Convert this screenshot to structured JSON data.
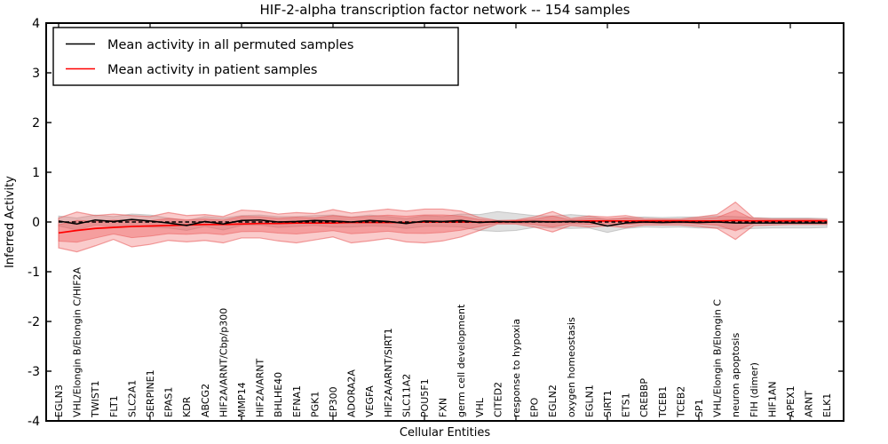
{
  "chart_data": {
    "type": "line",
    "title": "HIF-2-alpha transcription factor network -- 154 samples",
    "xlabel": "Cellular Entities",
    "ylabel": "Inferred Activity",
    "ylim": [
      -4,
      4
    ],
    "yticks": [
      4,
      3,
      2,
      1,
      0,
      -1,
      -2,
      -3,
      -4
    ],
    "grid": false,
    "legend_position": "upper left",
    "categories": [
      "EGLN3",
      "VHL/Elongin B/Elongin C/HIF2A",
      "TWIST1",
      "FLT1",
      "SLC2A1",
      "SERPINE1",
      "EPAS1",
      "KDR",
      "ABCG2",
      "HIF2A/ARNT/Cbp/p300",
      "MMP14",
      "HIF2A/ARNT",
      "BHLHE40",
      "EFNA1",
      "PGK1",
      "EP300",
      "ADORA2A",
      "VEGFA",
      "HIF2A/ARNT/SIRT1",
      "SLC11A2",
      "POU5F1",
      "FXN",
      "germ cell development",
      "VHL",
      "CITED2",
      "response to hypoxia",
      "EPO",
      "EGLN2",
      "oxygen homeostasis",
      "EGLN1",
      "SIRT1",
      "ETS1",
      "CREBBP",
      "TCEB1",
      "TCEB2",
      "SP1",
      "VHL/Elongin B/Elongin C",
      "neuron apoptosis",
      "FIH (dimer)",
      "HIF1AN",
      "APEX1",
      "ARNT",
      "ELK1"
    ],
    "series": [
      {
        "name": "Mean activity in all permuted samples",
        "color": "#000000",
        "style": "solid",
        "values": [
          0.02,
          -0.04,
          0.04,
          0.01,
          0.05,
          0.02,
          -0.02,
          -0.07,
          0.01,
          -0.04,
          0.03,
          0.04,
          0.0,
          0.01,
          0.03,
          0.02,
          0.0,
          0.03,
          0.01,
          -0.03,
          0.02,
          0.01,
          0.03,
          -0.01,
          0.01,
          0.0,
          0.01,
          0.0,
          0.01,
          0.0,
          -0.08,
          -0.02,
          0.0,
          -0.01,
          0.0,
          -0.01,
          0.0,
          -0.02,
          -0.02,
          -0.02,
          -0.02,
          -0.02,
          -0.02
        ]
      },
      {
        "name": "Mean activity in patient samples",
        "color": "#ff0000",
        "style": "solid",
        "values": [
          -0.22,
          -0.17,
          -0.13,
          -0.11,
          -0.09,
          -0.08,
          -0.07,
          -0.06,
          -0.05,
          -0.05,
          -0.04,
          -0.03,
          -0.03,
          -0.02,
          -0.02,
          -0.02,
          -0.01,
          -0.01,
          -0.01,
          -0.01,
          0.0,
          0.0,
          0.0,
          0.0,
          0.0,
          0.01,
          0.01,
          0.01,
          0.01,
          0.02,
          0.02,
          0.02,
          0.02,
          0.02,
          0.02,
          0.02,
          0.02,
          0.03,
          0.02,
          0.02,
          0.02,
          0.02,
          0.02
        ]
      }
    ],
    "zero_line": {
      "value": 0,
      "color": "#000000",
      "style": "dashed"
    },
    "bands": {
      "permuted_std": {
        "center_series": 0,
        "half_widths": [
          0.1,
          0.12,
          0.1,
          0.1,
          0.11,
          0.12,
          0.1,
          0.1,
          0.1,
          0.12,
          0.1,
          0.1,
          0.11,
          0.1,
          0.1,
          0.12,
          0.1,
          0.11,
          0.1,
          0.1,
          0.11,
          0.1,
          0.13,
          0.16,
          0.2,
          0.17,
          0.12,
          0.12,
          0.14,
          0.12,
          0.13,
          0.11,
          0.1,
          0.1,
          0.1,
          0.11,
          0.12,
          0.13,
          0.11,
          0.1,
          0.1,
          0.1,
          0.09
        ],
        "fill": "rgba(150,150,150,0.30)",
        "edge": "rgba(150,150,150,0.45)"
      },
      "patient_std_outer": {
        "hi": [
          0.08,
          0.2,
          0.13,
          0.16,
          0.13,
          0.11,
          0.19,
          0.13,
          0.15,
          0.11,
          0.24,
          0.22,
          0.16,
          0.19,
          0.17,
          0.25,
          0.18,
          0.22,
          0.26,
          0.22,
          0.26,
          0.26,
          0.22,
          0.09,
          0.03,
          0.04,
          0.1,
          0.21,
          0.07,
          0.12,
          0.1,
          0.13,
          0.07,
          0.06,
          0.06,
          0.1,
          0.15,
          0.4,
          0.08,
          0.06,
          0.06,
          0.06,
          0.05
        ],
        "lo": [
          -0.52,
          -0.6,
          -0.48,
          -0.35,
          -0.5,
          -0.45,
          -0.37,
          -0.4,
          -0.37,
          -0.42,
          -0.32,
          -0.32,
          -0.38,
          -0.42,
          -0.36,
          -0.3,
          -0.42,
          -0.38,
          -0.33,
          -0.4,
          -0.42,
          -0.38,
          -0.3,
          -0.17,
          -0.04,
          -0.04,
          -0.1,
          -0.2,
          -0.07,
          -0.1,
          -0.08,
          -0.11,
          -0.06,
          -0.06,
          -0.06,
          -0.09,
          -0.13,
          -0.35,
          -0.07,
          -0.06,
          -0.05,
          -0.05,
          -0.05
        ],
        "fill": "rgba(240,105,105,0.35)",
        "edge": "rgba(232,85,85,0.55)"
      },
      "patient_std_inner": {
        "fraction_of_outer": 0.55,
        "fill": "rgba(238,90,90,0.40)",
        "edge": "rgba(230,75,75,0.45)"
      }
    },
    "frame_color": "#000000",
    "background_color": "#ffffff"
  }
}
